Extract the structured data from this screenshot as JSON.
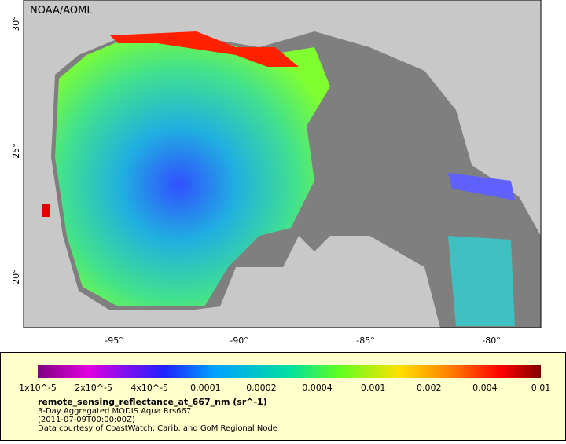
{
  "map": {
    "credit": "NOAA/AOML",
    "lat_labels": [
      "30°",
      "25°",
      "20°"
    ],
    "lon_labels": [
      "-95°",
      "-90°",
      "-85°",
      "-80°"
    ]
  },
  "colorbar": {
    "tick_labels": [
      "1x10^-5",
      "2x10^-5",
      "4x10^-5",
      "0.0001",
      "0.0002",
      "0.0004",
      "0.001",
      "0.002",
      "0.004",
      "0.01"
    ]
  },
  "caption": {
    "title": "remote_sensing_reflectance_at_667_nm (sr^-1)",
    "lines": [
      "3-Day Aggregated MODIS Aqua Rrs667",
      "(2011-07-09T00:00:00Z)",
      "Data courtesy of CoastWatch, Carib. and GoM Regional Node"
    ]
  }
}
